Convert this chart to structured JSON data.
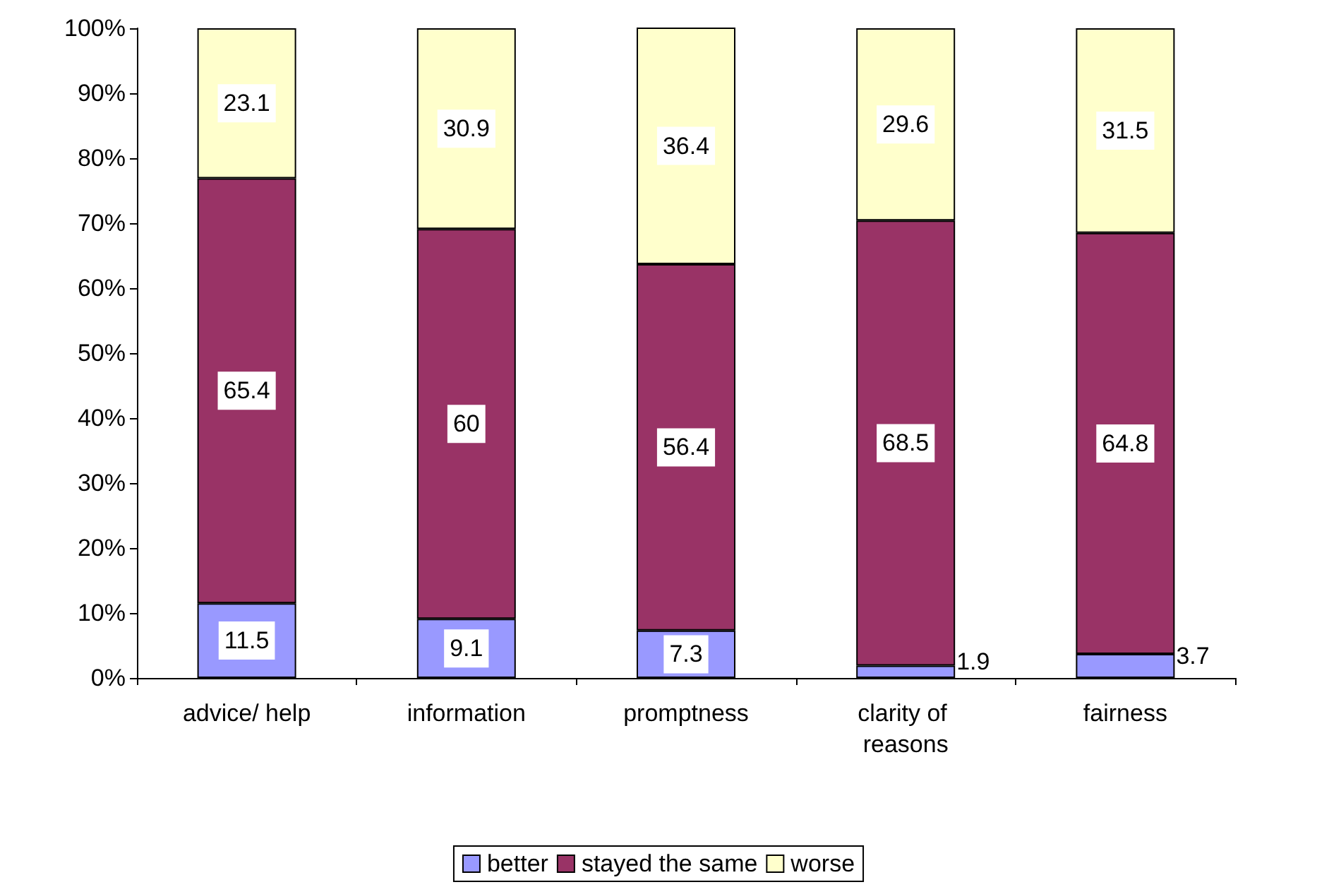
{
  "chart_data": {
    "type": "bar",
    "stacked": true,
    "categories": [
      "advice/ help",
      "information",
      "promptness",
      "clarity of reasons",
      "fairness"
    ],
    "series": [
      {
        "name": "better",
        "color": "#9999ff",
        "values": [
          11.5,
          9.1,
          7.3,
          1.9,
          3.7
        ]
      },
      {
        "name": "stayed the same",
        "color": "#993366",
        "values": [
          65.4,
          60,
          56.4,
          68.5,
          64.8
        ]
      },
      {
        "name": "worse",
        "color": "#ffffcc",
        "values": [
          23.1,
          30.9,
          36.4,
          29.6,
          31.5
        ]
      }
    ],
    "ylim": [
      0,
      100
    ],
    "yticks": [
      {
        "value": 0,
        "label": "0%"
      },
      {
        "value": 10,
        "label": "10%"
      },
      {
        "value": 20,
        "label": "20%"
      },
      {
        "value": 30,
        "label": "30%"
      },
      {
        "value": 40,
        "label": "40%"
      },
      {
        "value": 50,
        "label": "50%"
      },
      {
        "value": 60,
        "label": "60%"
      },
      {
        "value": 70,
        "label": "70%"
      },
      {
        "value": 80,
        "label": "80%"
      },
      {
        "value": 90,
        "label": "90%"
      },
      {
        "value": 100,
        "label": "100%"
      }
    ],
    "data_labels": true,
    "grid": false,
    "legend": "bottom"
  }
}
